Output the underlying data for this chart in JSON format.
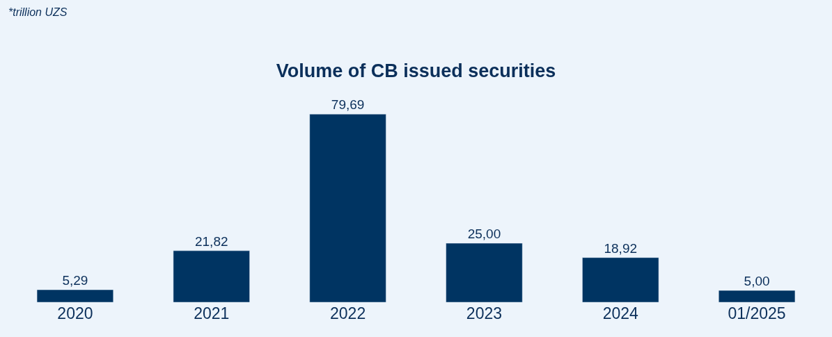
{
  "chart_data": {
    "type": "bar",
    "title": "Volume of CB issued securities",
    "annotations": [
      "*trillion UZS"
    ],
    "categories": [
      "2020",
      "2021",
      "2022",
      "2023",
      "2024",
      "01/2025"
    ],
    "values": [
      5.29,
      21.82,
      79.69,
      25.0,
      18.92,
      5.0
    ],
    "value_labels": [
      "5,29",
      "21,82",
      "79,69",
      "25,00",
      "18,92",
      "5,00"
    ],
    "color": "#003462",
    "grid": false,
    "legend": false
  }
}
